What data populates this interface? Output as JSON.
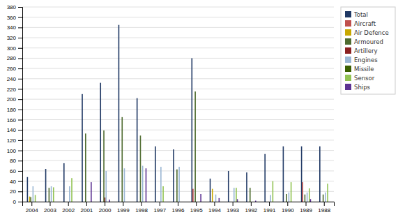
{
  "chart_data": {
    "type": "bar",
    "categories": [
      "2004",
      "2003",
      "2002",
      "2001",
      "2000",
      "1999",
      "1998",
      "1997",
      "1996",
      "1995",
      "1994",
      "1993",
      "1992",
      "1991",
      "1990",
      "1989",
      "1988"
    ],
    "series": [
      {
        "name": "Total",
        "color": "#1f3864",
        "values": [
          48,
          64,
          75,
          210,
          232,
          345,
          202,
          108,
          102,
          280,
          45,
          60,
          57,
          93,
          108,
          108,
          108
        ]
      },
      {
        "name": "Aircraft",
        "color": "#c0504d",
        "values": [
          0,
          0,
          0,
          0,
          0,
          0,
          0,
          0,
          0,
          25,
          0,
          0,
          0,
          0,
          0,
          38,
          0
        ]
      },
      {
        "name": "Air Defence",
        "color": "#c8a800",
        "values": [
          10,
          0,
          0,
          0,
          0,
          0,
          0,
          0,
          0,
          0,
          25,
          0,
          0,
          0,
          0,
          0,
          0
        ]
      },
      {
        "name": "Armoured",
        "color": "#4e6b2f",
        "values": [
          9,
          27,
          0,
          133,
          139,
          165,
          129,
          0,
          63,
          215,
          0,
          0,
          27,
          0,
          15,
          14,
          14
        ]
      },
      {
        "name": "Artillery",
        "color": "#8b2020",
        "values": [
          0,
          0,
          0,
          0,
          8,
          0,
          0,
          0,
          0,
          0,
          0,
          0,
          0,
          0,
          0,
          0,
          0
        ]
      },
      {
        "name": "Engines",
        "color": "#9bb7d4",
        "values": [
          30,
          30,
          30,
          0,
          60,
          65,
          70,
          68,
          68,
          0,
          14,
          27,
          0,
          13,
          18,
          18,
          18
        ]
      },
      {
        "name": "Missile",
        "color": "#3a5f00",
        "values": [
          0,
          0,
          0,
          0,
          0,
          0,
          0,
          0,
          0,
          0,
          0,
          0,
          0,
          0,
          0,
          0,
          0
        ]
      },
      {
        "name": "Sensor",
        "color": "#92c353",
        "values": [
          13,
          28,
          46,
          0,
          0,
          0,
          0,
          30,
          0,
          0,
          0,
          27,
          0,
          40,
          38,
          26,
          35
        ]
      },
      {
        "name": "Ships",
        "color": "#5c3292",
        "values": [
          0,
          0,
          0,
          38,
          4,
          0,
          65,
          0,
          0,
          15,
          7,
          5,
          2,
          0,
          0,
          5,
          0
        ]
      }
    ],
    "ylim": [
      0,
      380
    ],
    "yticks": [
      0,
      20,
      40,
      60,
      80,
      100,
      120,
      140,
      160,
      180,
      200,
      220,
      240,
      260,
      280,
      300,
      320,
      340,
      360,
      380
    ],
    "grid": true,
    "legend": "right"
  }
}
